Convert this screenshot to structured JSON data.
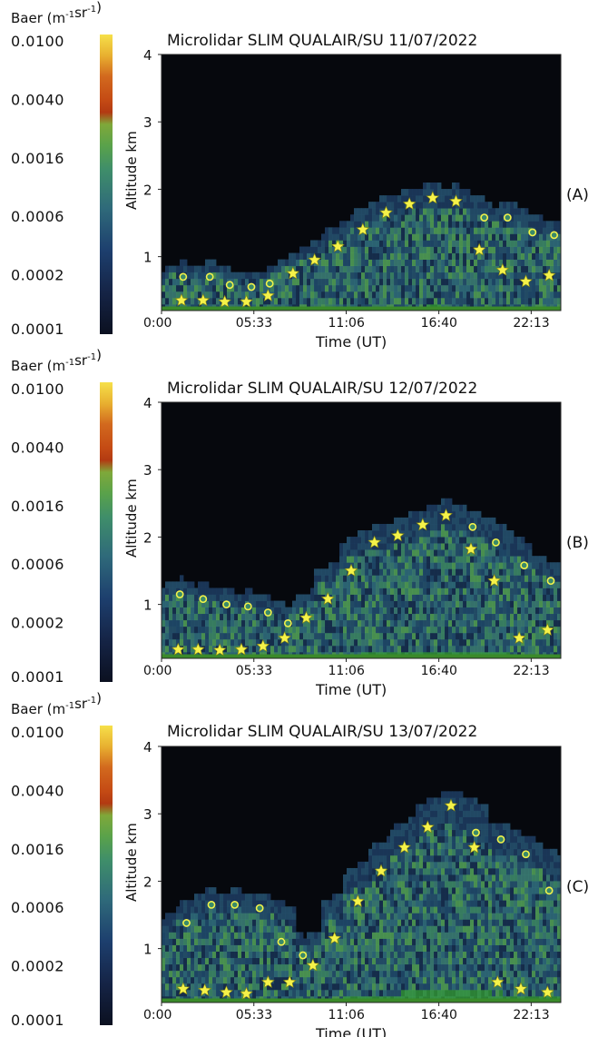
{
  "colorbar": {
    "label_prefix": "Baer (m",
    "label_exp1": "-1",
    "label_mid": "sr",
    "label_exp2": "-1",
    "label_suffix": ")",
    "ticks": [
      "0.0100",
      "0.0040",
      "0.0016",
      "0.0006",
      "0.0002",
      "0.0001"
    ],
    "colors": [
      "#0b1020",
      "#152446",
      "#1d3f6e",
      "#2f6a7a",
      "#3f8e6a",
      "#5aa24a",
      "#7fa83a",
      "#b23a12",
      "#d2691e",
      "#e8b030",
      "#f6e04a"
    ]
  },
  "chart_data": [
    {
      "type": "heatmap",
      "title": "Microlidar SLIM QUALAIR/SU 11/07/2022",
      "panel_label": "(A)",
      "xlabel": "Time (UT)",
      "ylabel": "Altitude km",
      "x_ticks": [
        "0:00",
        "05:33",
        "11:06",
        "16:40",
        "22:13"
      ],
      "y_ticks": [
        1,
        2,
        3,
        4
      ],
      "xlim": [
        0,
        24
      ],
      "ylim": [
        0.2,
        4
      ],
      "stars": [
        [
          1.2,
          0.35
        ],
        [
          2.5,
          0.35
        ],
        [
          3.8,
          0.33
        ],
        [
          5.1,
          0.33
        ],
        [
          6.4,
          0.42
        ],
        [
          7.9,
          0.75
        ],
        [
          9.2,
          0.95
        ],
        [
          10.6,
          1.15
        ],
        [
          12.1,
          1.4
        ],
        [
          13.5,
          1.65
        ],
        [
          14.9,
          1.78
        ],
        [
          16.3,
          1.87
        ],
        [
          17.7,
          1.82
        ],
        [
          19.1,
          1.1
        ],
        [
          20.5,
          0.8
        ],
        [
          21.9,
          0.63
        ],
        [
          23.3,
          0.72
        ]
      ],
      "circles": [
        [
          1.3,
          0.7
        ],
        [
          2.9,
          0.7
        ],
        [
          4.1,
          0.58
        ],
        [
          5.4,
          0.55
        ],
        [
          6.5,
          0.6
        ],
        [
          19.4,
          1.58
        ],
        [
          20.8,
          1.58
        ],
        [
          22.3,
          1.36
        ],
        [
          23.6,
          1.32
        ]
      ]
    },
    {
      "type": "heatmap",
      "title": "Microlidar SLIM QUALAIR/SU 12/07/2022",
      "panel_label": "(B)",
      "xlabel": "Time (UT)",
      "ylabel": "Altitude km",
      "x_ticks": [
        "0:00",
        "05:33",
        "11:06",
        "16:40",
        "22:13"
      ],
      "y_ticks": [
        1,
        2,
        3,
        4
      ],
      "xlim": [
        0,
        24
      ],
      "ylim": [
        0.2,
        4
      ],
      "stars": [
        [
          1.0,
          0.33
        ],
        [
          2.2,
          0.33
        ],
        [
          3.5,
          0.32
        ],
        [
          4.8,
          0.33
        ],
        [
          6.1,
          0.38
        ],
        [
          7.4,
          0.5
        ],
        [
          8.7,
          0.8
        ],
        [
          10.0,
          1.08
        ],
        [
          11.4,
          1.5
        ],
        [
          12.8,
          1.92
        ],
        [
          14.2,
          2.02
        ],
        [
          15.7,
          2.18
        ],
        [
          17.1,
          2.32
        ],
        [
          18.6,
          1.82
        ],
        [
          20.0,
          1.35
        ],
        [
          21.5,
          0.5
        ],
        [
          23.2,
          0.62
        ]
      ],
      "circles": [
        [
          1.1,
          1.15
        ],
        [
          2.5,
          1.08
        ],
        [
          3.9,
          1.0
        ],
        [
          5.2,
          0.97
        ],
        [
          6.4,
          0.88
        ],
        [
          7.6,
          0.72
        ],
        [
          18.7,
          2.15
        ],
        [
          20.1,
          1.92
        ],
        [
          21.8,
          1.58
        ],
        [
          23.4,
          1.35
        ]
      ]
    },
    {
      "type": "heatmap",
      "title": "Microlidar SLIM QUALAIR/SU 13/07/2022",
      "panel_label": "(C)",
      "xlabel": "Time (UT)",
      "ylabel": "Altitude km",
      "x_ticks": [
        "0:00",
        "05:33",
        "11:06",
        "16:40",
        "22:13"
      ],
      "y_ticks": [
        1,
        2,
        3,
        4
      ],
      "xlim": [
        0,
        24
      ],
      "ylim": [
        0.2,
        4
      ],
      "stars": [
        [
          1.3,
          0.4
        ],
        [
          2.6,
          0.38
        ],
        [
          3.9,
          0.35
        ],
        [
          5.1,
          0.33
        ],
        [
          6.4,
          0.5
        ],
        [
          7.7,
          0.5
        ],
        [
          9.1,
          0.75
        ],
        [
          10.4,
          1.15
        ],
        [
          11.8,
          1.7
        ],
        [
          13.2,
          2.15
        ],
        [
          14.6,
          2.5
        ],
        [
          16.0,
          2.8
        ],
        [
          17.4,
          3.12
        ],
        [
          18.8,
          2.5
        ],
        [
          20.2,
          0.5
        ],
        [
          21.6,
          0.4
        ],
        [
          23.2,
          0.35
        ]
      ],
      "circles": [
        [
          1.5,
          1.38
        ],
        [
          3.0,
          1.65
        ],
        [
          4.4,
          1.65
        ],
        [
          5.9,
          1.6
        ],
        [
          7.2,
          1.1
        ],
        [
          8.5,
          0.9
        ],
        [
          18.9,
          2.72
        ],
        [
          20.4,
          2.62
        ],
        [
          21.9,
          2.4
        ],
        [
          23.3,
          1.86
        ]
      ]
    }
  ]
}
